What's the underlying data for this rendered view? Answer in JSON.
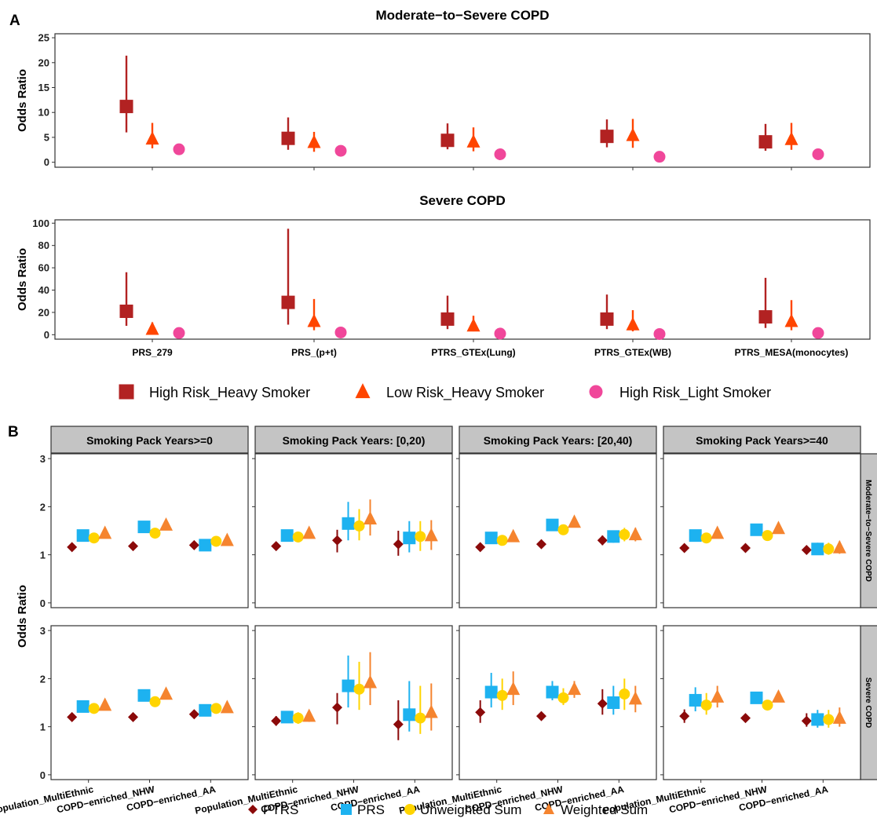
{
  "chart_data": [
    {
      "type": "scatter",
      "panel_label": "A",
      "title": "Moderate−to−Severe COPD",
      "ylabel": "Odds Ratio",
      "ylim": [
        -1,
        25.8
      ],
      "yticks": [
        0,
        5,
        10,
        15,
        20,
        25
      ],
      "categories": [
        "PRS_279",
        "PRS_(p+t)",
        "PTRS_GTEx(Lung)",
        "PTRS_GTEx(WB)",
        "PTRS_MESA(monocytes)"
      ],
      "show_category_labels": false,
      "series": [
        {
          "name": "High Risk_Heavy Smoker",
          "shape": "square",
          "color": "#B22222",
          "values": [
            11.2,
            4.8,
            4.4,
            5.2,
            4.1
          ],
          "lower": [
            6.0,
            2.5,
            2.6,
            3.0,
            2.3
          ],
          "upper": [
            21.4,
            9.0,
            7.8,
            8.6,
            7.7
          ]
        },
        {
          "name": "Low Risk_Heavy Smoker",
          "shape": "triangle",
          "color": "#FF4500",
          "values": [
            4.7,
            4.0,
            4.1,
            5.4,
            4.6
          ],
          "lower": [
            2.8,
            2.1,
            2.2,
            2.9,
            2.5
          ],
          "upper": [
            7.9,
            6.1,
            7.0,
            8.7,
            7.9
          ]
        },
        {
          "name": "High Risk_Light Smoker",
          "shape": "circle",
          "color": "#F0479A",
          "values": [
            2.6,
            2.3,
            1.6,
            1.1,
            1.6
          ],
          "lower": null,
          "upper": null
        }
      ]
    },
    {
      "type": "scatter",
      "panel_label": "",
      "title": "Severe COPD",
      "ylabel": "Odds Ratio",
      "ylim": [
        -4,
        103
      ],
      "yticks": [
        0,
        20,
        40,
        60,
        80,
        100
      ],
      "categories": [
        "PRS_279",
        "PRS_(p+t)",
        "PTRS_GTEx(Lung)",
        "PTRS_GTEx(WB)",
        "PTRS_MESA(monocytes)"
      ],
      "show_category_labels": true,
      "series": [
        {
          "name": "High Risk_Heavy Smoker",
          "shape": "square",
          "color": "#B22222",
          "values": [
            21,
            29,
            14,
            14,
            16
          ],
          "lower": [
            8,
            9,
            5,
            5,
            6
          ],
          "upper": [
            56,
            95,
            35,
            36,
            51
          ]
        },
        {
          "name": "Low Risk_Heavy Smoker",
          "shape": "triangle",
          "color": "#FF4500",
          "values": [
            5,
            12,
            8,
            9,
            12
          ],
          "lower": [
            2,
            4,
            3,
            3,
            4
          ],
          "upper": [
            11,
            32,
            17,
            22,
            31
          ]
        },
        {
          "name": "High Risk_Light Smoker",
          "shape": "circle",
          "color": "#F0479A",
          "values": [
            1.5,
            2.0,
            1.0,
            0.6,
            1.5
          ],
          "lower": null,
          "upper": null
        }
      ]
    },
    {
      "type": "scatter",
      "panel_label": "B",
      "ylabel": "Odds Ratio",
      "ylim": [
        -0.1,
        3.1
      ],
      "yticks": [
        0,
        1,
        2,
        3
      ],
      "columns": [
        "Smoking Pack Years>=0",
        "Smoking Pack Years: [0,20)",
        "Smoking Pack Years: [20,40)",
        "Smoking Pack Years>=40"
      ],
      "rows": [
        "Moderate−to−Severe COPD",
        "Severe COPD"
      ],
      "categories": [
        "Population_MultiEthnic",
        "COPD−enriched_NHW",
        "COPD−enriched_AA"
      ],
      "series_names": [
        "PTRS",
        "PRS",
        "Unweighted Sum",
        "Weighted Sum"
      ],
      "series_shapes": [
        "diamond",
        "square",
        "circle",
        "triangle"
      ],
      "series_colors": [
        "#8B0A0A",
        "#1DB2F0",
        "#FFD400",
        "#F5842F"
      ],
      "cells": [
        [
          {
            "values": [
              [
                1.16,
                1.16,
                1.16
              ],
              [
                1.4,
                1.4,
                1.4
              ],
              [
                1.35,
                1.35,
                1.35
              ],
              [
                1.45,
                1.45,
                1.45
              ]
            ],
            "category_values": [
              [
                1.16,
                1.4,
                1.35,
                1.45
              ],
              [
                1.18,
                1.58,
                1.45,
                1.62
              ],
              [
                1.2,
                1.2,
                1.28,
                1.3
              ]
            ],
            "lower": [
              [
                1.1,
                1.33,
                1.28,
                1.38
              ],
              [
                1.12,
                1.5,
                1.38,
                1.55
              ],
              [
                1.12,
                1.12,
                1.2,
                1.22
              ]
            ],
            "upper": [
              [
                1.22,
                1.47,
                1.42,
                1.52
              ],
              [
                1.24,
                1.66,
                1.52,
                1.7
              ],
              [
                1.28,
                1.28,
                1.36,
                1.38
              ]
            ]
          },
          {
            "category_values": [
              [
                1.18,
                1.4,
                1.37,
                1.45
              ],
              [
                1.3,
                1.65,
                1.6,
                1.75
              ],
              [
                1.22,
                1.35,
                1.38,
                1.4
              ]
            ],
            "lower": [
              [
                1.12,
                1.32,
                1.3,
                1.38
              ],
              [
                1.05,
                1.3,
                1.3,
                1.4
              ],
              [
                0.98,
                1.05,
                1.08,
                1.1
              ]
            ],
            "upper": [
              [
                1.24,
                1.48,
                1.44,
                1.52
              ],
              [
                1.52,
                2.1,
                1.95,
                2.15
              ],
              [
                1.5,
                1.7,
                1.7,
                1.72
              ]
            ]
          },
          {
            "category_values": [
              [
                1.16,
                1.35,
                1.3,
                1.38
              ],
              [
                1.22,
                1.62,
                1.52,
                1.68
              ],
              [
                1.3,
                1.38,
                1.42,
                1.42
              ]
            ],
            "lower": [
              [
                1.1,
                1.28,
                1.23,
                1.31
              ],
              [
                1.16,
                1.54,
                1.44,
                1.6
              ],
              [
                1.2,
                1.25,
                1.28,
                1.28
              ]
            ],
            "upper": [
              [
                1.22,
                1.42,
                1.37,
                1.45
              ],
              [
                1.28,
                1.7,
                1.6,
                1.76
              ],
              [
                1.4,
                1.5,
                1.56,
                1.56
              ]
            ]
          },
          {
            "category_values": [
              [
                1.14,
                1.4,
                1.35,
                1.45
              ],
              [
                1.14,
                1.52,
                1.4,
                1.55
              ],
              [
                1.1,
                1.12,
                1.12,
                1.15
              ]
            ],
            "lower": [
              [
                1.08,
                1.32,
                1.28,
                1.38
              ],
              [
                1.08,
                1.44,
                1.32,
                1.48
              ],
              [
                1.02,
                1.0,
                1.0,
                1.02
              ]
            ],
            "upper": [
              [
                1.2,
                1.48,
                1.42,
                1.52
              ],
              [
                1.2,
                1.6,
                1.48,
                1.62
              ],
              [
                1.18,
                1.25,
                1.25,
                1.28
              ]
            ]
          }
        ],
        [
          {
            "category_values": [
              [
                1.2,
                1.42,
                1.38,
                1.45
              ],
              [
                1.2,
                1.65,
                1.52,
                1.68
              ],
              [
                1.26,
                1.34,
                1.38,
                1.4
              ]
            ],
            "lower": [
              [
                1.14,
                1.35,
                1.31,
                1.38
              ],
              [
                1.14,
                1.57,
                1.44,
                1.6
              ],
              [
                1.18,
                1.24,
                1.28,
                1.3
              ]
            ],
            "upper": [
              [
                1.26,
                1.49,
                1.45,
                1.52
              ],
              [
                1.26,
                1.73,
                1.6,
                1.76
              ],
              [
                1.34,
                1.44,
                1.48,
                1.5
              ]
            ]
          },
          {
            "category_values": [
              [
                1.12,
                1.2,
                1.18,
                1.22
              ],
              [
                1.4,
                1.85,
                1.78,
                1.92
              ],
              [
                1.05,
                1.25,
                1.18,
                1.3
              ]
            ],
            "lower": [
              [
                1.02,
                1.08,
                1.06,
                1.1
              ],
              [
                1.05,
                1.4,
                1.35,
                1.45
              ],
              [
                0.72,
                0.9,
                0.85,
                0.92
              ]
            ],
            "upper": [
              [
                1.22,
                1.32,
                1.3,
                1.34
              ],
              [
                1.7,
                2.48,
                2.35,
                2.55
              ],
              [
                1.55,
                1.95,
                1.85,
                1.9
              ]
            ]
          },
          {
            "category_values": [
              [
                1.3,
                1.72,
                1.65,
                1.78
              ],
              [
                1.22,
                1.72,
                1.6,
                1.78
              ],
              [
                1.48,
                1.5,
                1.68,
                1.58
              ]
            ],
            "lower": [
              [
                1.08,
                1.4,
                1.35,
                1.45
              ],
              [
                1.15,
                1.55,
                1.45,
                1.6
              ],
              [
                1.25,
                1.25,
                1.35,
                1.3
              ]
            ],
            "upper": [
              [
                1.55,
                2.12,
                2.0,
                2.15
              ],
              [
                1.29,
                1.95,
                1.8,
                1.95
              ],
              [
                1.78,
                1.85,
                2.0,
                1.85
              ]
            ]
          },
          {
            "category_values": [
              [
                1.22,
                1.55,
                1.45,
                1.62
              ],
              [
                1.18,
                1.6,
                1.45,
                1.62
              ],
              [
                1.12,
                1.15,
                1.15,
                1.18
              ]
            ],
            "lower": [
              [
                1.08,
                1.32,
                1.25,
                1.4
              ],
              [
                1.12,
                1.52,
                1.37,
                1.54
              ],
              [
                1.0,
                0.98,
                0.98,
                1.0
              ]
            ],
            "upper": [
              [
                1.36,
                1.82,
                1.7,
                1.85
              ],
              [
                1.24,
                1.68,
                1.53,
                1.7
              ],
              [
                1.28,
                1.35,
                1.35,
                1.4
              ]
            ]
          }
        ]
      ]
    }
  ],
  "legend_a": [
    "High Risk_Heavy Smoker",
    "Low Risk_Heavy Smoker",
    "High Risk_Light Smoker"
  ],
  "legend_b": [
    "PTRS",
    "PRS",
    "Unweighted Sum",
    "Weighted Sum"
  ]
}
